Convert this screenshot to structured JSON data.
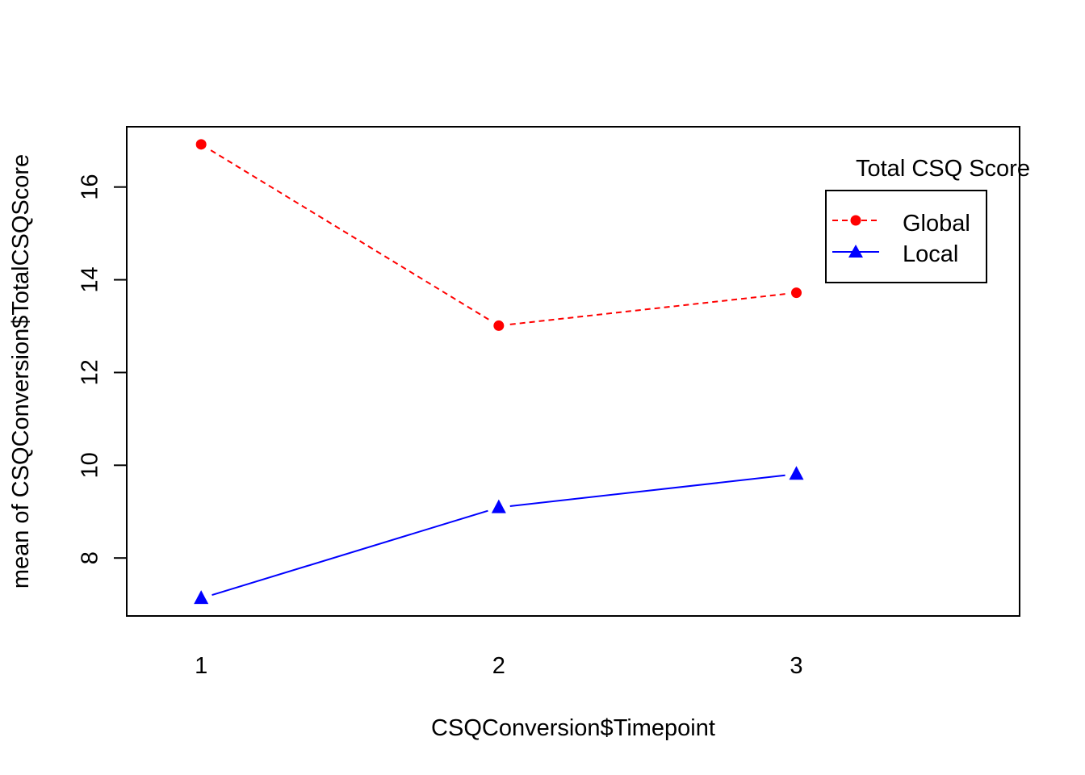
{
  "chart_data": {
    "type": "line",
    "title": "",
    "xlabel": "CSQConversion$Timepoint",
    "ylabel": "mean of  CSQConversion$TotalCSQScore",
    "categories": [
      "1",
      "2",
      "3"
    ],
    "x": [
      1,
      2,
      3
    ],
    "xlim": [
      0.75,
      3.75
    ],
    "ylim": [
      6.75,
      17.3
    ],
    "yticks": [
      8,
      10,
      12,
      14,
      16
    ],
    "grid": false,
    "legend": {
      "title": "Total CSQ Score",
      "placement": "top-right",
      "entries": [
        "Global",
        "Local"
      ]
    },
    "series": [
      {
        "name": "Global",
        "values": [
          16.92,
          13.01,
          13.72
        ],
        "color": "#ff0000",
        "line": "dashed",
        "marker": "circle"
      },
      {
        "name": "Local",
        "values": [
          7.13,
          9.09,
          9.81
        ],
        "color": "#0000ff",
        "line": "solid",
        "marker": "triangle"
      }
    ]
  }
}
